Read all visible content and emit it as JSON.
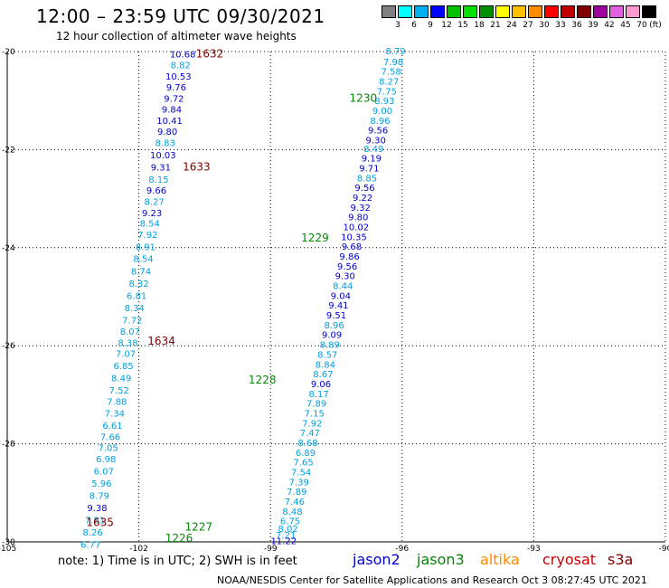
{
  "header": {
    "title": "12:00 – 23:59 UTC 09/30/2021",
    "subtitle": "12 hour collection of altimeter wave heights"
  },
  "colorbar": {
    "unit": "(ft)",
    "levels": [
      "3",
      "6",
      "9",
      "12",
      "15",
      "18",
      "21",
      "24",
      "27",
      "30",
      "33",
      "36",
      "39",
      "42",
      "45",
      "70"
    ],
    "colors": [
      "#808080",
      "#00ffff",
      "#00b0f0",
      "#0000ff",
      "#00c000",
      "#00e000",
      "#009000",
      "#ffff00",
      "#ffc000",
      "#ff8c00",
      "#ff0000",
      "#c00000",
      "#800000",
      "#a000a0",
      "#e060e0",
      "#ff9ad0",
      "#000000"
    ]
  },
  "footer": {
    "note": "note: 1) Time is in UTC; 2) SWH is in feet",
    "credit": "NOAA/NESDIS Center for Satellite Applications and Research    Oct  3 08:27:45 UTC 2021",
    "satellites": [
      {
        "name": "jason2",
        "color": "#0000cc"
      },
      {
        "name": "jason3",
        "color": "#008800"
      },
      {
        "name": "altika",
        "color": "#ff8800"
      },
      {
        "name": "cryosat",
        "color": "#cc0000"
      },
      {
        "name": "s3a",
        "color": "#800000"
      }
    ]
  },
  "chart_data": {
    "type": "scatter",
    "xlim": [
      -105,
      -90
    ],
    "ylim": [
      -30,
      -20
    ],
    "x_ticks": [
      "-105",
      "-102",
      "-99",
      "-96",
      "-93",
      "-90"
    ],
    "y_ticks": [
      "-20",
      "-22",
      "-24",
      "-26",
      "-28",
      "-30"
    ],
    "grid": true,
    "time_labels": [
      {
        "text": "1632",
        "x": -100.7,
        "y": -20.05,
        "color": "#800000"
      },
      {
        "text": "1633",
        "x": -101.0,
        "y": -22.35,
        "color": "#800000"
      },
      {
        "text": "1634",
        "x": -101.8,
        "y": -25.9,
        "color": "#800000"
      },
      {
        "text": "1635",
        "x": -103.2,
        "y": -29.6,
        "color": "#800000"
      },
      {
        "text": "1230",
        "x": -97.2,
        "y": -20.95,
        "color": "#008800"
      },
      {
        "text": "1229",
        "x": -98.3,
        "y": -23.8,
        "color": "#008800"
      },
      {
        "text": "1228",
        "x": -99.5,
        "y": -26.7,
        "color": "#008800"
      },
      {
        "text": "1227",
        "x": -100.95,
        "y": -29.7,
        "color": "#008800"
      },
      {
        "text": "1226",
        "x": -101.4,
        "y": -29.93,
        "color": "#008800"
      }
    ],
    "series": [
      {
        "name": "cryosat",
        "points": [
          {
            "x": -101.0,
            "y": -20.05,
            "v": "10.68",
            "c": "#0000cc"
          },
          {
            "x": -101.05,
            "y": -20.27,
            "v": "8.82",
            "c": "#00a0e0"
          },
          {
            "x": -101.1,
            "y": -20.5,
            "v": "10.53",
            "c": "#0000cc"
          },
          {
            "x": -101.15,
            "y": -20.72,
            "v": "9.76",
            "c": "#0000cc"
          },
          {
            "x": -101.2,
            "y": -20.95,
            "v": "9.72",
            "c": "#0000cc"
          },
          {
            "x": -101.25,
            "y": -21.17,
            "v": "9.84",
            "c": "#0000cc"
          },
          {
            "x": -101.3,
            "y": -21.4,
            "v": "10.41",
            "c": "#0000cc"
          },
          {
            "x": -101.35,
            "y": -21.62,
            "v": "9.80",
            "c": "#0000cc"
          },
          {
            "x": -101.4,
            "y": -21.85,
            "v": "8.83",
            "c": "#00a0e0"
          },
          {
            "x": -101.45,
            "y": -22.1,
            "v": "10.03",
            "c": "#0000cc"
          },
          {
            "x": -101.5,
            "y": -22.35,
            "v": "9.31",
            "c": "#0000cc"
          },
          {
            "x": -101.55,
            "y": -22.6,
            "v": "8.15",
            "c": "#00a0e0"
          },
          {
            "x": -101.6,
            "y": -22.82,
            "v": "9.66",
            "c": "#0000cc"
          },
          {
            "x": -101.65,
            "y": -23.05,
            "v": "8.27",
            "c": "#00a0e0"
          },
          {
            "x": -101.7,
            "y": -23.28,
            "v": "9.23",
            "c": "#0000cc"
          },
          {
            "x": -101.75,
            "y": -23.5,
            "v": "8.54",
            "c": "#00a0e0"
          },
          {
            "x": -101.8,
            "y": -23.73,
            "v": "7.92",
            "c": "#00a0e0"
          },
          {
            "x": -101.85,
            "y": -23.98,
            "v": "8.91",
            "c": "#00a0e0"
          },
          {
            "x": -101.9,
            "y": -24.22,
            "v": "8.54",
            "c": "#00a0e0"
          },
          {
            "x": -101.95,
            "y": -24.47,
            "v": "8.74",
            "c": "#00a0e0"
          },
          {
            "x": -102.0,
            "y": -24.72,
            "v": "8.32",
            "c": "#00a0e0"
          },
          {
            "x": -102.05,
            "y": -24.97,
            "v": "6.81",
            "c": "#00a0e0"
          },
          {
            "x": -102.1,
            "y": -25.22,
            "v": "8.34",
            "c": "#00a0e0"
          },
          {
            "x": -102.15,
            "y": -25.47,
            "v": "7.72",
            "c": "#00a0e0"
          },
          {
            "x": -102.2,
            "y": -25.7,
            "v": "8.07",
            "c": "#00a0e0"
          },
          {
            "x": -102.25,
            "y": -25.93,
            "v": "8.38",
            "c": "#00a0e0"
          },
          {
            "x": -102.3,
            "y": -26.15,
            "v": "7.07",
            "c": "#00a0e0"
          },
          {
            "x": -102.35,
            "y": -26.4,
            "v": "6.85",
            "c": "#00a0e0"
          },
          {
            "x": -102.4,
            "y": -26.65,
            "v": "8.49",
            "c": "#00a0e0"
          },
          {
            "x": -102.45,
            "y": -26.9,
            "v": "7.52",
            "c": "#00a0e0"
          },
          {
            "x": -102.5,
            "y": -27.13,
            "v": "7.88",
            "c": "#00a0e0"
          },
          {
            "x": -102.55,
            "y": -27.37,
            "v": "7.34",
            "c": "#00a0e0"
          },
          {
            "x": -102.6,
            "y": -27.62,
            "v": "6.61",
            "c": "#00a0e0"
          },
          {
            "x": -102.65,
            "y": -27.85,
            "v": "7.66",
            "c": "#00a0e0"
          },
          {
            "x": -102.7,
            "y": -28.07,
            "v": "7.05",
            "c": "#00a0e0"
          },
          {
            "x": -102.75,
            "y": -28.3,
            "v": "6.98",
            "c": "#00a0e0"
          },
          {
            "x": -102.8,
            "y": -28.55,
            "v": "6.07",
            "c": "#00a0e0"
          },
          {
            "x": -102.85,
            "y": -28.8,
            "v": "5.96",
            "c": "#00a0e0"
          },
          {
            "x": -102.9,
            "y": -29.05,
            "v": "8.79",
            "c": "#00a0e0"
          },
          {
            "x": -102.95,
            "y": -29.3,
            "v": "9.38",
            "c": "#0000cc"
          },
          {
            "x": -103.0,
            "y": -29.55,
            "v": "7.81",
            "c": "#00a0e0"
          },
          {
            "x": -103.05,
            "y": -29.8,
            "v": "8.26",
            "c": "#00a0e0"
          },
          {
            "x": -103.1,
            "y": -30.05,
            "v": "6.77",
            "c": "#00a0e0"
          }
        ]
      },
      {
        "name": "jason3",
        "points": [
          {
            "x": -96.15,
            "y": -19.98,
            "v": "8.79",
            "c": "#00a0e0"
          },
          {
            "x": -96.2,
            "y": -20.2,
            "v": "7.98",
            "c": "#00a0e0"
          },
          {
            "x": -96.25,
            "y": -20.4,
            "v": "7.58",
            "c": "#00a0e0"
          },
          {
            "x": -96.3,
            "y": -20.6,
            "v": "8.27",
            "c": "#00a0e0"
          },
          {
            "x": -96.35,
            "y": -20.8,
            "v": "7.75",
            "c": "#00a0e0"
          },
          {
            "x": -96.4,
            "y": -21.0,
            "v": "8.93",
            "c": "#00a0e0"
          },
          {
            "x": -96.45,
            "y": -21.2,
            "v": "9.00",
            "c": "#00a0e0"
          },
          {
            "x": -96.5,
            "y": -21.4,
            "v": "8.96",
            "c": "#00a0e0"
          },
          {
            "x": -96.55,
            "y": -21.6,
            "v": "9.56",
            "c": "#0000cc"
          },
          {
            "x": -96.6,
            "y": -21.8,
            "v": "9.30",
            "c": "#0000cc"
          },
          {
            "x": -96.65,
            "y": -21.97,
            "v": "8.49",
            "c": "#00a0e0"
          },
          {
            "x": -96.7,
            "y": -22.17,
            "v": "9.19",
            "c": "#0000cc"
          },
          {
            "x": -96.75,
            "y": -22.37,
            "v": "9.71",
            "c": "#0000cc"
          },
          {
            "x": -96.8,
            "y": -22.57,
            "v": "8.85",
            "c": "#00a0e0"
          },
          {
            "x": -96.85,
            "y": -22.77,
            "v": "9.56",
            "c": "#0000cc"
          },
          {
            "x": -96.9,
            "y": -22.97,
            "v": "9.22",
            "c": "#0000cc"
          },
          {
            "x": -96.95,
            "y": -23.17,
            "v": "9.32",
            "c": "#0000cc"
          },
          {
            "x": -97.0,
            "y": -23.37,
            "v": "9.80",
            "c": "#0000cc"
          },
          {
            "x": -97.05,
            "y": -23.57,
            "v": "10.02",
            "c": "#0000cc"
          },
          {
            "x": -97.1,
            "y": -23.77,
            "v": "10.35",
            "c": "#0000cc"
          },
          {
            "x": -97.15,
            "y": -23.97,
            "v": "9.68",
            "c": "#0000cc"
          },
          {
            "x": -97.2,
            "y": -24.17,
            "v": "9.86",
            "c": "#0000cc"
          },
          {
            "x": -97.25,
            "y": -24.37,
            "v": "9.56",
            "c": "#0000cc"
          },
          {
            "x": -97.3,
            "y": -24.57,
            "v": "9.30",
            "c": "#0000cc"
          },
          {
            "x": -97.35,
            "y": -24.77,
            "v": "8.44",
            "c": "#00a0e0"
          },
          {
            "x": -97.4,
            "y": -24.97,
            "v": "9.04",
            "c": "#0000cc"
          },
          {
            "x": -97.45,
            "y": -25.17,
            "v": "9.41",
            "c": "#0000cc"
          },
          {
            "x": -97.5,
            "y": -25.37,
            "v": "9.51",
            "c": "#0000cc"
          },
          {
            "x": -97.55,
            "y": -25.57,
            "v": "8.96",
            "c": "#00a0e0"
          },
          {
            "x": -97.6,
            "y": -25.77,
            "v": "9.09",
            "c": "#0000cc"
          },
          {
            "x": -97.65,
            "y": -25.97,
            "v": "8.89",
            "c": "#00a0e0"
          },
          {
            "x": -97.7,
            "y": -26.17,
            "v": "8.57",
            "c": "#00a0e0"
          },
          {
            "x": -97.75,
            "y": -26.37,
            "v": "8.84",
            "c": "#00a0e0"
          },
          {
            "x": -97.8,
            "y": -26.57,
            "v": "8.67",
            "c": "#00a0e0"
          },
          {
            "x": -97.85,
            "y": -26.77,
            "v": "9.06",
            "c": "#0000cc"
          },
          {
            "x": -97.9,
            "y": -26.97,
            "v": "8.17",
            "c": "#00a0e0"
          },
          {
            "x": -97.95,
            "y": -27.17,
            "v": "7.89",
            "c": "#00a0e0"
          },
          {
            "x": -98.0,
            "y": -27.37,
            "v": "7.15",
            "c": "#00a0e0"
          },
          {
            "x": -98.05,
            "y": -27.57,
            "v": "7.92",
            "c": "#00a0e0"
          },
          {
            "x": -98.1,
            "y": -27.77,
            "v": "7.47",
            "c": "#00a0e0"
          },
          {
            "x": -98.15,
            "y": -27.97,
            "v": "8.68",
            "c": "#00a0e0"
          },
          {
            "x": -98.2,
            "y": -28.17,
            "v": "6.89",
            "c": "#00a0e0"
          },
          {
            "x": -98.25,
            "y": -28.37,
            "v": "7.65",
            "c": "#00a0e0"
          },
          {
            "x": -98.3,
            "y": -28.57,
            "v": "7.54",
            "c": "#00a0e0"
          },
          {
            "x": -98.35,
            "y": -28.77,
            "v": "7.39",
            "c": "#00a0e0"
          },
          {
            "x": -98.4,
            "y": -28.97,
            "v": "7.89",
            "c": "#00a0e0"
          },
          {
            "x": -98.45,
            "y": -29.17,
            "v": "7.46",
            "c": "#00a0e0"
          },
          {
            "x": -98.5,
            "y": -29.37,
            "v": "8.48",
            "c": "#00a0e0"
          },
          {
            "x": -98.55,
            "y": -29.57,
            "v": "6.75",
            "c": "#00a0e0"
          },
          {
            "x": -98.6,
            "y": -29.72,
            "v": "8.02",
            "c": "#00a0e0"
          },
          {
            "x": -98.65,
            "y": -29.85,
            "v": "7.21",
            "c": "#00a0e0"
          },
          {
            "x": -98.7,
            "y": -29.97,
            "v": "11.22",
            "c": "#0000cc"
          }
        ]
      }
    ]
  }
}
